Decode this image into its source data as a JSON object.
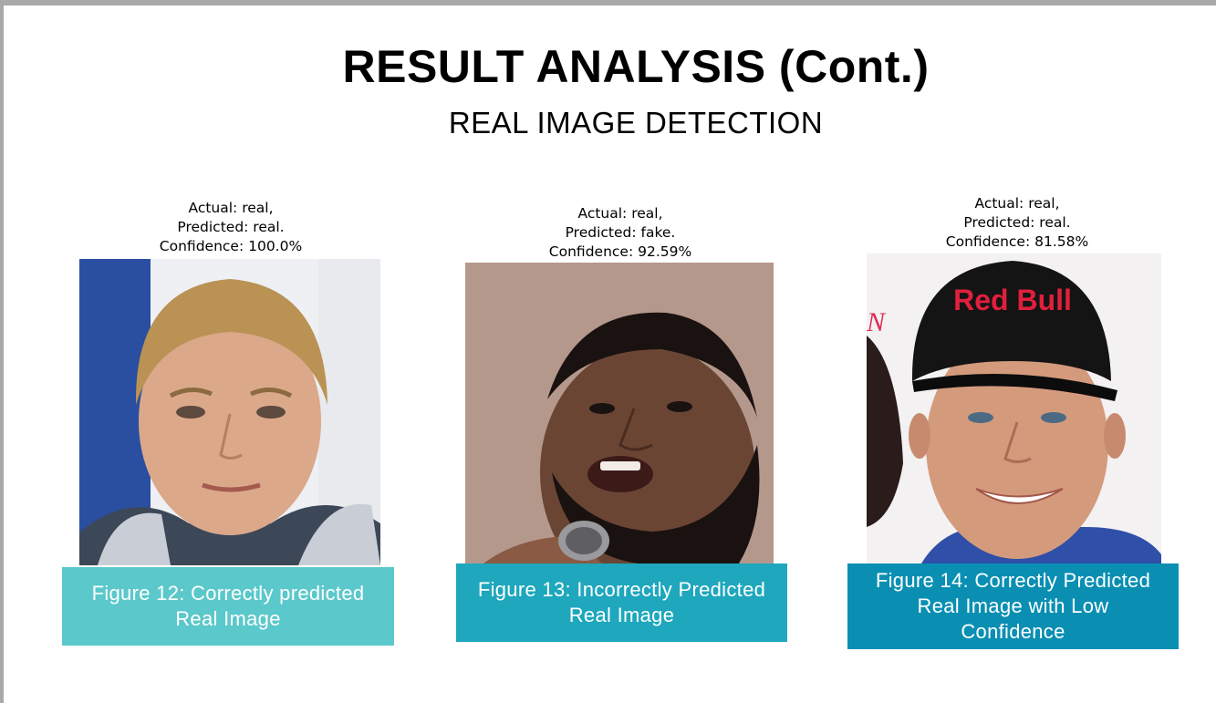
{
  "slide": {
    "title": "RESULT ANALYSIS (Cont.)",
    "subtitle": "REAL IMAGE DETECTION"
  },
  "figures": [
    {
      "actual": "Actual: real,",
      "predicted": "Predicted: real.",
      "confidence": "Confidence: 100.0%",
      "caption_lines": [
        "Figure 12: Correctly predicted",
        "Real Image"
      ],
      "caption_color": "#5bc8cb"
    },
    {
      "actual": "Actual: real,",
      "predicted": "Predicted: fake.",
      "confidence": "Confidence: 92.59%",
      "caption_lines": [
        "Figure 13: Incorrectly Predicted",
        "Real Image"
      ],
      "caption_color": "#1ea7bd"
    },
    {
      "actual": "Actual: real,",
      "predicted": "Predicted: real.",
      "confidence": "Confidence: 81.58%",
      "caption_lines": [
        "Figure 14: Correctly Predicted",
        "Real Image with Low",
        "Confidence"
      ],
      "caption_color": "#0a8fb3"
    }
  ],
  "photo3_cap_logo": "Red Bull"
}
